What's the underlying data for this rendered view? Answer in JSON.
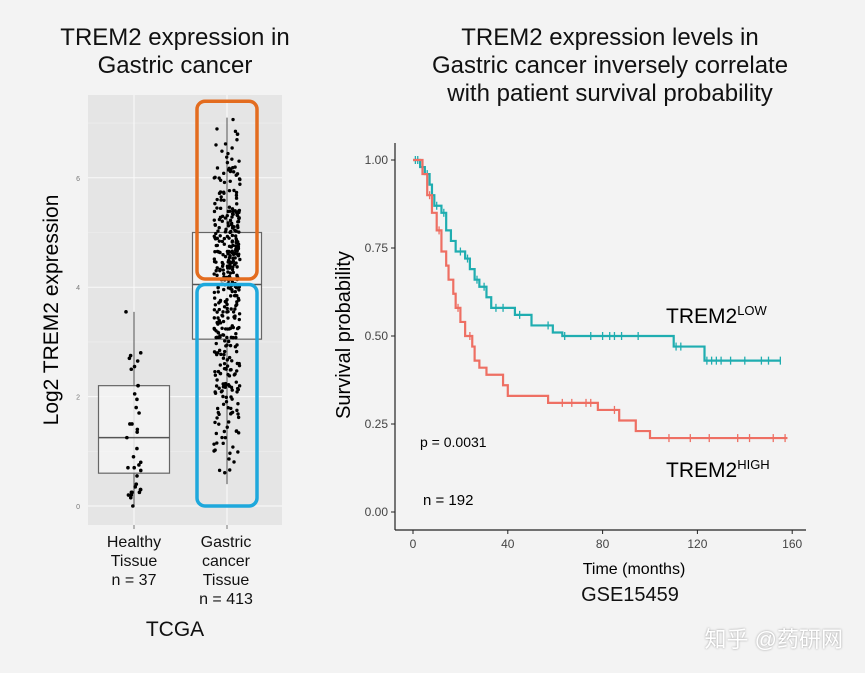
{
  "chart_data": [
    {
      "type": "box",
      "title": "TREM2 expression in Gastric cancer",
      "title_lines": [
        "TREM2 expression in",
        "Gastric cancer"
      ],
      "ylabel": "Log2 TREM2 expression",
      "ylim": [
        -0.3,
        7.6
      ],
      "yticks": [
        "0",
        "2",
        "4",
        "6"
      ],
      "grid": true,
      "panel_background": "#e5e5e5",
      "caption": "TCGA",
      "categories": [
        {
          "label_lines": [
            "Healthy",
            "Tissue",
            "n = 37"
          ],
          "n": 37,
          "min": 0.0,
          "q1": 0.6,
          "median": 1.25,
          "q3": 2.2,
          "max": 3.55,
          "points": [
            3.55,
            2.8,
            2.75,
            2.7,
            2.65,
            2.55,
            2.5,
            2.2,
            2.2,
            2.05,
            1.95,
            1.8,
            1.7,
            1.5,
            1.5,
            1.4,
            1.35,
            1.25,
            1.05,
            0.9,
            0.8,
            0.75,
            0.7,
            0.7,
            0.65,
            0.55,
            0.4,
            0.35,
            0.3,
            0.3,
            0.25,
            0.25,
            0.25,
            0.2,
            0.2,
            0.15,
            0.0
          ]
        },
        {
          "label_lines": [
            "Gastric",
            "cancer",
            "Tissue",
            "n = 413"
          ],
          "n": 413,
          "min": 0.4,
          "q1": 3.05,
          "median": 4.05,
          "q3": 5.0,
          "max": 7.1
        }
      ],
      "highlights": [
        {
          "group": "high",
          "color": "#e36c1f",
          "range": [
            4.15,
            7.4
          ]
        },
        {
          "group": "low",
          "color": "#1ea8dc",
          "range": [
            0.0,
            4.05
          ]
        }
      ]
    },
    {
      "type": "line",
      "subtype": "kaplan-meier",
      "title_lines": [
        "TREM2 expression levels in",
        "Gastric cancer inversely correlate",
        "with patient survival probability"
      ],
      "xlabel": "Time (months)",
      "ylabel": "Survival probability",
      "xlim": [
        -5,
        162
      ],
      "ylim": [
        -0.08,
        1.04
      ],
      "xticks": [
        "0",
        "40",
        "80",
        "120",
        "160"
      ],
      "yticks": [
        "0.00",
        "0.25",
        "0.50",
        "0.75",
        "1.00"
      ],
      "caption": "GSE15459",
      "annotations": {
        "p": "p = 0.0031",
        "n": "n = 192"
      },
      "series": [
        {
          "name": "TREM2",
          "name_sup": "LOW",
          "color": "#1fadb0",
          "steps": [
            [
              0,
              1
            ],
            [
              3,
              0.98
            ],
            [
              5,
              0.96
            ],
            [
              7,
              0.93
            ],
            [
              8,
              0.9
            ],
            [
              9,
              0.87
            ],
            [
              12,
              0.85
            ],
            [
              14,
              0.8
            ],
            [
              16,
              0.77
            ],
            [
              18,
              0.74
            ],
            [
              22,
              0.72
            ],
            [
              24,
              0.69
            ],
            [
              26,
              0.66
            ],
            [
              28,
              0.64
            ],
            [
              31,
              0.61
            ],
            [
              33,
              0.58
            ],
            [
              43,
              0.56
            ],
            [
              50,
              0.53
            ],
            [
              59,
              0.51
            ],
            [
              63,
              0.5
            ],
            [
              110,
              0.47
            ],
            [
              123,
              0.43
            ],
            [
              155,
              0.43
            ]
          ],
          "censored": [
            1,
            2,
            4,
            6,
            10,
            13,
            20,
            23,
            27,
            30,
            35,
            38,
            45,
            57,
            64,
            75,
            80,
            83,
            85,
            88,
            95,
            111,
            113,
            124,
            126,
            128,
            130,
            134,
            140,
            147,
            150,
            155
          ]
        },
        {
          "name": "TREM2",
          "name_sup": "HIGH",
          "color": "#ee6f63",
          "steps": [
            [
              0,
              1
            ],
            [
              4,
              0.96
            ],
            [
              6,
              0.9
            ],
            [
              8,
              0.85
            ],
            [
              10,
              0.8
            ],
            [
              12,
              0.74
            ],
            [
              14,
              0.7
            ],
            [
              15,
              0.66
            ],
            [
              17,
              0.62
            ],
            [
              18,
              0.58
            ],
            [
              20,
              0.54
            ],
            [
              22,
              0.5
            ],
            [
              25,
              0.47
            ],
            [
              26,
              0.43
            ],
            [
              28,
              0.41
            ],
            [
              31,
              0.39
            ],
            [
              38,
              0.36
            ],
            [
              40,
              0.33
            ],
            [
              57,
              0.31
            ],
            [
              78,
              0.29
            ],
            [
              87,
              0.26
            ],
            [
              94,
              0.23
            ],
            [
              100,
              0.21
            ],
            [
              158,
              0.21
            ]
          ],
          "censored": [
            7,
            11,
            19,
            24,
            63,
            67,
            73,
            75,
            85,
            108,
            117,
            125,
            137,
            142,
            152,
            157
          ]
        }
      ]
    }
  ],
  "watermark": "知乎 @药研网"
}
